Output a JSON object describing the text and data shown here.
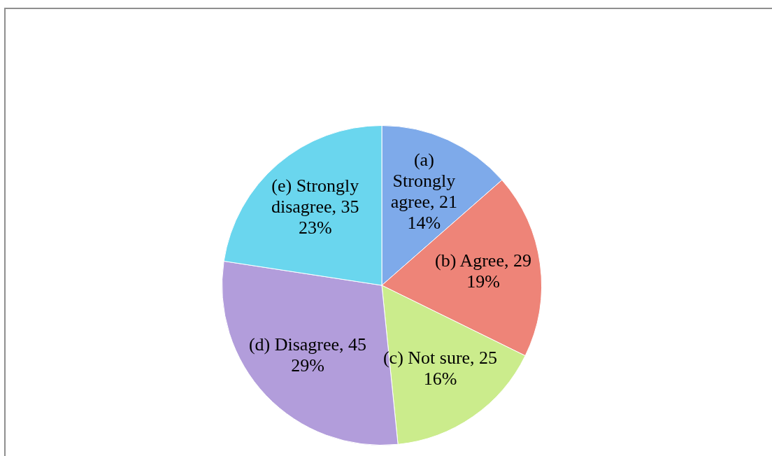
{
  "chart_data": {
    "type": "pie",
    "categories": [
      "(a) Strongly agree",
      "(b) Agree",
      "(c) Not sure",
      "(d) Disagree",
      "(e) Strongly disagree"
    ],
    "values": [
      21,
      29,
      25,
      45,
      35
    ],
    "colors": [
      "#7eaaea",
      "#ee8478",
      "#cbec8c",
      "#b29ddb",
      "#6ad6ee"
    ],
    "value_labels": [
      "21\n14%",
      "29\n19%",
      "25\n16%",
      "45\n29%",
      "35\n23%"
    ]
  }
}
